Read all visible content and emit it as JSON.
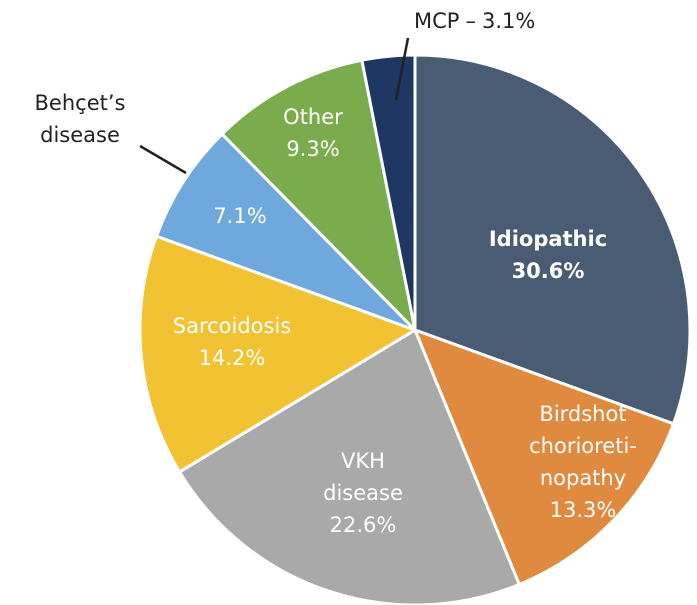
{
  "chart_data": {
    "type": "pie",
    "categories": [
      [
        "Idiopathic"
      ],
      [
        "Birdshot",
        "chorioreti-",
        "nopathy"
      ],
      [
        "VKH",
        "disease"
      ],
      [
        "Sarcoidosis"
      ],
      [
        "Behçet’s",
        "disease"
      ],
      [
        "Other"
      ],
      [
        "MCP"
      ]
    ],
    "values": [
      30.6,
      13.3,
      22.6,
      14.2,
      7.1,
      9.3,
      3.1
    ],
    "value_labels": [
      "30.6%",
      "13.3%",
      "22.6%",
      "14.2%",
      "7.1%",
      "9.3%",
      "3.1%"
    ],
    "colors": [
      "#4a5b74",
      "#e08a3f",
      "#a9a9a9",
      "#f1c232",
      "#6fa8dc",
      "#7aab4c",
      "#1f3763"
    ],
    "separator": "–"
  }
}
